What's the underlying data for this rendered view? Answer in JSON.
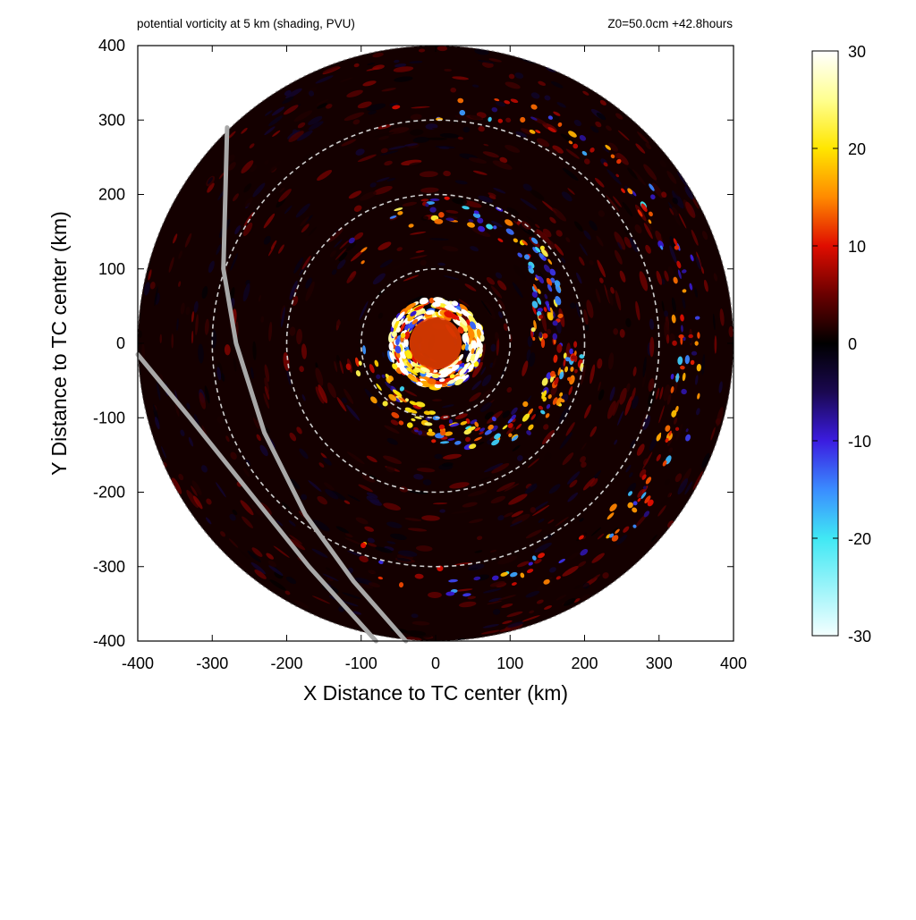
{
  "header": {
    "title_left": "potential vorticity at 5 km (shading, PVU)",
    "title_right": "Z0=50.0cm  +42.8hours"
  },
  "chart_data": {
    "type": "heatmap",
    "title": "potential vorticity at 5 km (shading, PVU)",
    "annotation": "Z0=50.0cm  +42.8hours",
    "xlabel": "X Distance to TC center (km)",
    "ylabel": "Y Distance to TC center (km)",
    "xlim": [
      -400,
      400
    ],
    "ylim": [
      -400,
      400
    ],
    "x_ticks": [
      -400,
      -300,
      -200,
      -100,
      0,
      100,
      200,
      300,
      400
    ],
    "y_ticks": [
      400,
      300,
      200,
      100,
      0,
      -100,
      -200,
      -300,
      -400
    ],
    "domain_radius_km": 400,
    "range_rings_km": [
      100,
      200,
      300
    ],
    "colorbar": {
      "range": [
        -30,
        30
      ],
      "ticks": [
        30,
        20,
        10,
        0,
        -10,
        -20,
        -30
      ],
      "stops": [
        {
          "value": -30,
          "color": "#f4ffff"
        },
        {
          "value": -20,
          "color": "#40e8f4"
        },
        {
          "value": -15,
          "color": "#3a8cff"
        },
        {
          "value": -10,
          "color": "#3b1ce0"
        },
        {
          "value": -5,
          "color": "#1a0850"
        },
        {
          "value": 0,
          "color": "#000000"
        },
        {
          "value": 5,
          "color": "#6a0000"
        },
        {
          "value": 10,
          "color": "#e00d00"
        },
        {
          "value": 15,
          "color": "#ff8a00"
        },
        {
          "value": 20,
          "color": "#ffe600"
        },
        {
          "value": 25,
          "color": "#ffff90"
        },
        {
          "value": 30,
          "color": "#ffffff"
        }
      ]
    },
    "features": [
      {
        "type": "core",
        "x": 0,
        "y": 0,
        "radius_km": 45,
        "value": 12
      },
      {
        "type": "eyewall",
        "x": 0,
        "y": 0,
        "radius_km": 50,
        "value": 22
      },
      {
        "type": "spiral_band",
        "center_radius_km": 140,
        "value": 15
      },
      {
        "type": "spiral_band",
        "center_radius_km": 300,
        "value": 10
      }
    ],
    "tracks": [
      {
        "name": "track-a",
        "x": [
          -280,
          -285,
          -268,
          -230,
          -175,
          -110,
          -40
        ],
        "y": [
          290,
          100,
          0,
          -120,
          -230,
          -320,
          -400
        ]
      },
      {
        "name": "track-b",
        "x": [
          -400,
          -330,
          -250,
          -170,
          -80
        ],
        "y": [
          -15,
          -100,
          -200,
          -300,
          -400
        ]
      }
    ],
    "colors": {
      "ring": "#cfcfcf",
      "track": "#a8a8a8",
      "frame": "#000000"
    }
  }
}
